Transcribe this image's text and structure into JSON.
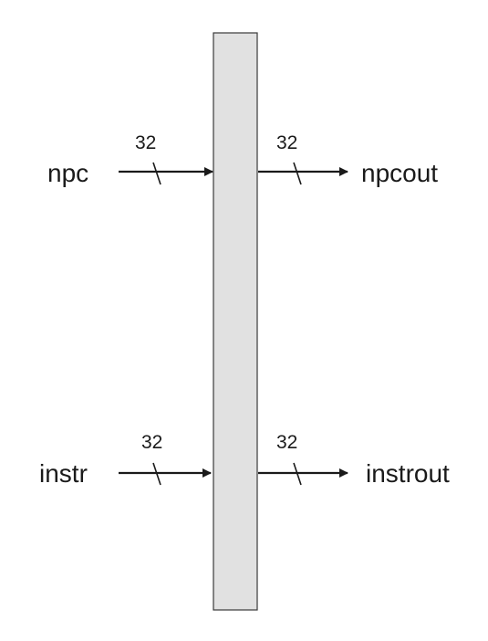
{
  "register": {
    "fill": "#e1e1e1",
    "stroke": "#3a3a3a"
  },
  "signals": {
    "npc": {
      "input_label": "npc",
      "input_width": "32",
      "output_label": "npcout",
      "output_width": "32"
    },
    "instr": {
      "input_label": "instr",
      "input_width": "32",
      "output_label": "instrout",
      "output_width": "32"
    }
  },
  "colors": {
    "line": "#1a1a1a"
  }
}
